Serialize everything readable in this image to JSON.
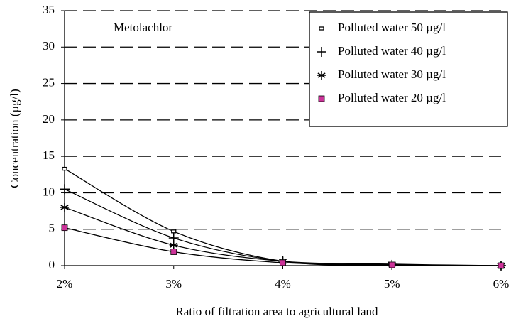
{
  "chart_data": {
    "type": "line",
    "annotation": "Metolachlor",
    "x_label": "Ratio of filtration area to agricultural land",
    "y_label": "Concentration (µg/l)",
    "categories": [
      "2%",
      "3%",
      "4%",
      "5%",
      "6%"
    ],
    "series": [
      {
        "name": "Polluted water 50 µg/l",
        "color": "#000000",
        "marker": "dash",
        "values": [
          13.3,
          4.7,
          0.6,
          0.1,
          0
        ]
      },
      {
        "name": "Polluted water 40 µg/l",
        "color": "#000000",
        "marker": "plus",
        "values": [
          10.5,
          3.8,
          0.6,
          0.1,
          0
        ]
      },
      {
        "name": "Polluted water 30 µg/l",
        "color": "#000000",
        "marker": "asterisk",
        "values": [
          8,
          2.8,
          0.6,
          0.2,
          0
        ]
      },
      {
        "name": "Polluted water 20 µg/l",
        "color": "#cc3399",
        "marker": "square",
        "values": [
          5.2,
          1.9,
          0.4,
          0.1,
          0
        ]
      }
    ],
    "line_color": "#000000",
    "ylim": [
      0,
      35
    ],
    "yticks": [
      0,
      5,
      10,
      15,
      20,
      25,
      30,
      35
    ],
    "grid": true,
    "legend": "top-right"
  }
}
